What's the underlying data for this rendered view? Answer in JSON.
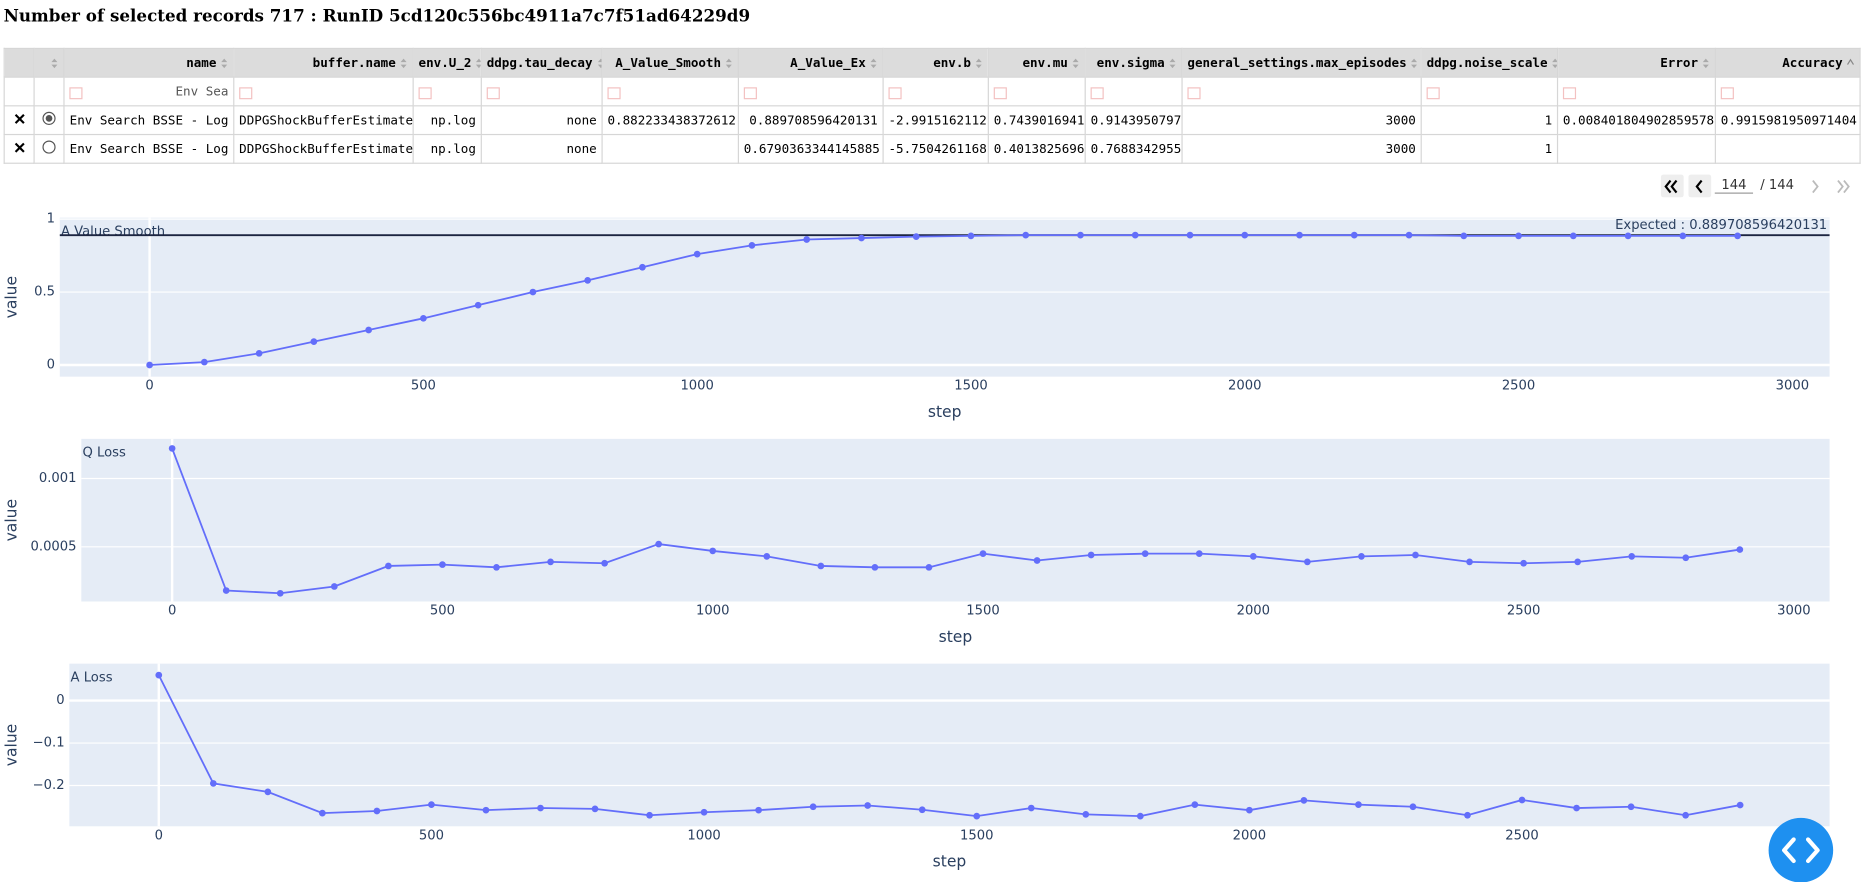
{
  "header": {
    "title": "Number of selected records 717 : RunID 5cd120c556bc4911a7c7f51ad64229d9"
  },
  "table": {
    "columns": [
      "name",
      "buffer.name",
      "env.U_2",
      "ddpg.tau_decay",
      "A_Value_Smooth",
      "A_Value_Ex",
      "env.b",
      "env.mu",
      "env.sigma",
      "general_settings.max_episodes",
      "ddpg.noise_scale",
      "Error",
      "Accuracy"
    ],
    "name_filter": "Env Sea",
    "selected_row": 0,
    "rows": [
      [
        "Env Search BSSE - Log",
        "DDPGShockBufferEstimate",
        "np.log",
        "none",
        "0.882233438372612",
        "0.889708596420131",
        "-2.9915162112",
        "0.7439016941",
        "0.9143950797",
        "3000",
        "1",
        "0.008401804902859578",
        "0.9915981950971404"
      ],
      [
        "Env Search BSSE - Log",
        "DDPGShockBufferEstimate",
        "np.log",
        "none",
        null,
        "0.6790363344145885",
        "-5.7504261168",
        "0.4013825696",
        "0.7688342955",
        "3000",
        "1",
        null,
        null
      ]
    ]
  },
  "pagination": {
    "page": "144",
    "of": "/ 144"
  },
  "chart_data": [
    {
      "type": "line",
      "title": "A Value Smooth",
      "xlabel": "step",
      "ylabel": "value",
      "color": "#636efa",
      "ygrid": true,
      "x": [
        0,
        100,
        200,
        300,
        400,
        500,
        600,
        700,
        800,
        900,
        1000,
        1100,
        1200,
        1300,
        1400,
        1500,
        1600,
        1700,
        1800,
        1900,
        2000,
        2100,
        2200,
        2300,
        2400,
        2500,
        2600,
        2700,
        2800,
        2900
      ],
      "values": [
        0,
        0.02,
        0.08,
        0.16,
        0.24,
        0.32,
        0.41,
        0.5,
        0.58,
        0.67,
        0.76,
        0.82,
        0.86,
        0.87,
        0.88,
        0.885,
        0.89,
        0.89,
        0.89,
        0.89,
        0.89,
        0.89,
        0.89,
        0.89,
        0.885,
        0.885,
        0.885,
        0.885,
        0.885,
        0.885
      ],
      "hline": 0.889708596420131,
      "hline_color": "#1c2541",
      "expected_label": "Expected : 0.889708596420131",
      "xlim": [
        -164,
        3068
      ],
      "xticks": [
        0,
        500,
        1000,
        1500,
        2000,
        2500,
        3000
      ],
      "ylim": [
        -0.08,
        1.01
      ],
      "yticks": [
        0,
        0.5,
        1
      ]
    },
    {
      "type": "line",
      "title": "Q Loss",
      "xlabel": "step",
      "ylabel": "value",
      "color": "#636efa",
      "ygrid": true,
      "x": [
        0,
        100,
        200,
        300,
        400,
        500,
        600,
        700,
        800,
        900,
        1000,
        1100,
        1200,
        1300,
        1400,
        1500,
        1600,
        1700,
        1800,
        1900,
        2000,
        2100,
        2200,
        2300,
        2400,
        2500,
        2600,
        2700,
        2800,
        2900
      ],
      "values": [
        0.00122,
        0.00018,
        0.00016,
        0.00021,
        0.00036,
        0.00037,
        0.00035,
        0.00039,
        0.00038,
        0.00052,
        0.00047,
        0.00043,
        0.00036,
        0.00035,
        0.00035,
        0.00045,
        0.0004,
        0.00044,
        0.00045,
        0.00045,
        0.00043,
        0.00039,
        0.00043,
        0.00044,
        0.00039,
        0.00038,
        0.00039,
        0.00043,
        0.00042,
        0.00048
      ],
      "xlim": [
        -168,
        3066
      ],
      "xticks": [
        0,
        500,
        1000,
        1500,
        2000,
        2500,
        3000
      ],
      "ylim": [
        0.0001,
        0.00129
      ],
      "yticks": [
        0.0005,
        0.001
      ]
    },
    {
      "type": "line",
      "title": "A Loss",
      "xlabel": "step",
      "ylabel": "value",
      "color": "#636efa",
      "ygrid": true,
      "x": [
        0,
        100,
        200,
        300,
        400,
        500,
        600,
        700,
        800,
        900,
        1000,
        1100,
        1200,
        1300,
        1400,
        1500,
        1600,
        1700,
        1800,
        1900,
        2000,
        2100,
        2200,
        2300,
        2400,
        2500,
        2600,
        2700,
        2800,
        2900
      ],
      "values": [
        0.06,
        -0.195,
        -0.215,
        -0.265,
        -0.26,
        -0.245,
        -0.258,
        -0.253,
        -0.255,
        -0.27,
        -0.263,
        -0.258,
        -0.25,
        -0.247,
        -0.257,
        -0.272,
        -0.253,
        -0.268,
        -0.272,
        -0.245,
        -0.258,
        -0.235,
        -0.245,
        -0.25,
        -0.27,
        -0.234,
        -0.253,
        -0.25,
        -0.27,
        -0.246
      ],
      "xlim": [
        -164,
        3064
      ],
      "xticks": [
        0,
        500,
        1000,
        1500,
        2000,
        2500
      ],
      "ylim": [
        -0.296,
        0.087
      ],
      "yticks": [
        0,
        {
          "value": -0.1,
          "label": "−0.1"
        },
        {
          "value": -0.2,
          "label": "−0.2"
        }
      ]
    }
  ]
}
